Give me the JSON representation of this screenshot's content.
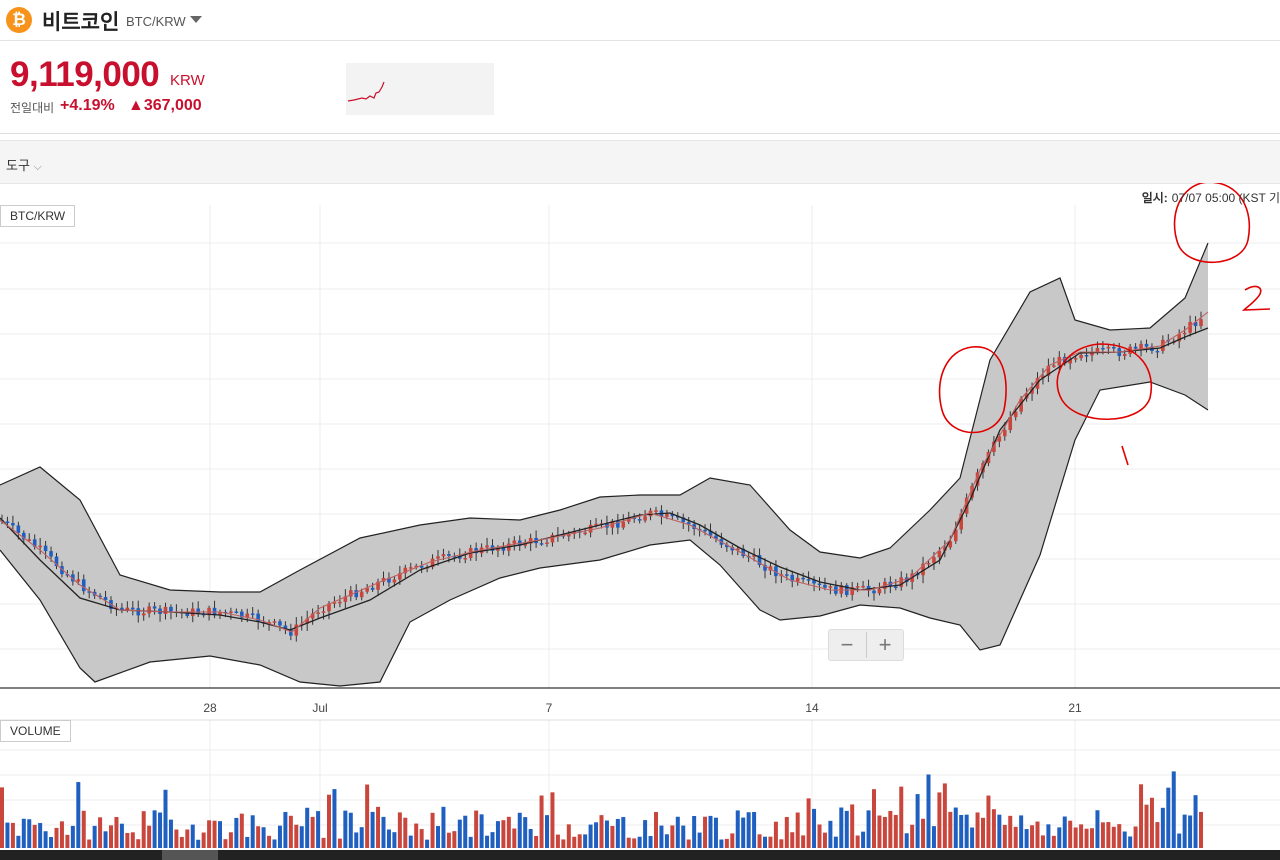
{
  "header": {
    "coin_icon": "bitcoin-icon",
    "coin_icon_glyph": "₿",
    "coin_name": "비트코인",
    "pair": "BTC/KRW"
  },
  "price": {
    "value": "9,119,000",
    "unit": "KRW",
    "change_label": "전일대비",
    "change_rate": "+4.19%",
    "change_amount": "▲367,000",
    "color": "#c8102e"
  },
  "toolbar": {
    "tools_label": "도구",
    "tools_caret": "⌵"
  },
  "chart": {
    "timestamp_label": "일시:",
    "timestamp_value": "07/07 05:00 (KST 기",
    "price_pane_label": "BTC/KRW",
    "volume_pane_label": "VOLUME",
    "x_ticks": [
      "28",
      "Jul",
      "7",
      "14",
      "21"
    ],
    "zoom_minus": "−",
    "zoom_plus": "+",
    "up_color": "#c9463d",
    "down_color": "#1f5fbf",
    "band_fill": "#c8c8c8"
  },
  "annotations": {
    "color": "#e00000",
    "labels": [
      "1",
      "2"
    ]
  }
}
